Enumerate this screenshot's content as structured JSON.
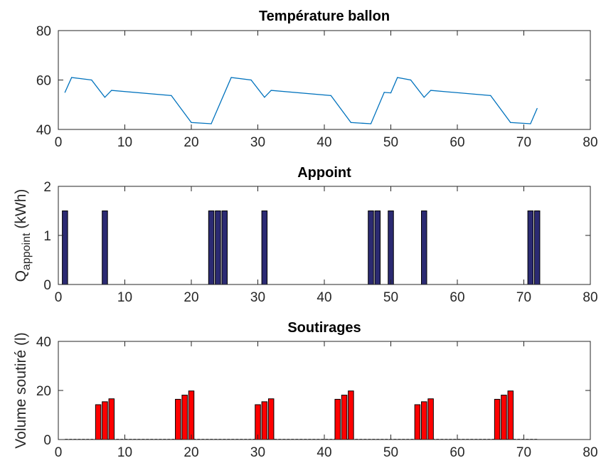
{
  "chart_data": [
    {
      "type": "line",
      "title": "Température ballon",
      "xlabel": "",
      "ylabel": "",
      "xlim": [
        0,
        80
      ],
      "ylim": [
        40,
        80
      ],
      "xticks": [
        0,
        10,
        20,
        30,
        40,
        50,
        60,
        70,
        80
      ],
      "yticks": [
        40,
        60,
        80
      ],
      "color": "#0072BD",
      "x": [
        1,
        2,
        5,
        7,
        8,
        17,
        20,
        23,
        26,
        29,
        31,
        32,
        41,
        44,
        47,
        49,
        50,
        51,
        53,
        55,
        56,
        65,
        68,
        71,
        72
      ],
      "y": [
        55,
        61,
        60,
        53,
        55.8,
        53.7,
        42.8,
        42.3,
        61,
        60,
        53,
        55.8,
        53.7,
        42.8,
        42.3,
        55,
        54.8,
        61,
        60,
        53,
        55.8,
        53.7,
        42.8,
        42.3,
        48.5
      ]
    },
    {
      "type": "bar",
      "title": "Appoint",
      "xlabel": "",
      "ylabel": "Q",
      "ylabel_sub": "appoint",
      "ylabel_unit": "(kWh)",
      "xlim": [
        0,
        80
      ],
      "ylim": [
        0,
        2
      ],
      "xticks": [
        0,
        10,
        20,
        30,
        40,
        50,
        60,
        70,
        80
      ],
      "yticks": [
        0,
        1,
        2
      ],
      "color": "#2B2A72",
      "x": [
        1,
        7,
        23,
        24,
        25,
        31,
        47,
        48,
        50,
        55,
        71,
        72
      ],
      "values": [
        1.5,
        1.5,
        1.5,
        1.5,
        1.5,
        1.5,
        1.5,
        1.5,
        1.5,
        1.5,
        1.5,
        1.5
      ]
    },
    {
      "type": "bar",
      "title": "Soutirages",
      "xlabel": "",
      "ylabel": "Volume soutiré (l)",
      "xlim": [
        0,
        80
      ],
      "ylim": [
        0,
        40
      ],
      "xticks": [
        0,
        10,
        20,
        30,
        40,
        50,
        60,
        70,
        80
      ],
      "yticks": [
        0,
        20,
        40
      ],
      "color": "#FF0000",
      "baseline_xrange": [
        1,
        72
      ],
      "x": [
        6,
        7,
        8,
        18,
        19,
        20,
        30,
        31,
        32,
        42,
        43,
        44,
        54,
        55,
        56,
        66,
        67,
        68
      ],
      "values": [
        14.2,
        15.4,
        16.6,
        16.4,
        18.1,
        19.8,
        14.2,
        15.4,
        16.6,
        16.4,
        18.1,
        19.8,
        14.2,
        15.4,
        16.6,
        16.4,
        18.1,
        19.8
      ]
    }
  ]
}
